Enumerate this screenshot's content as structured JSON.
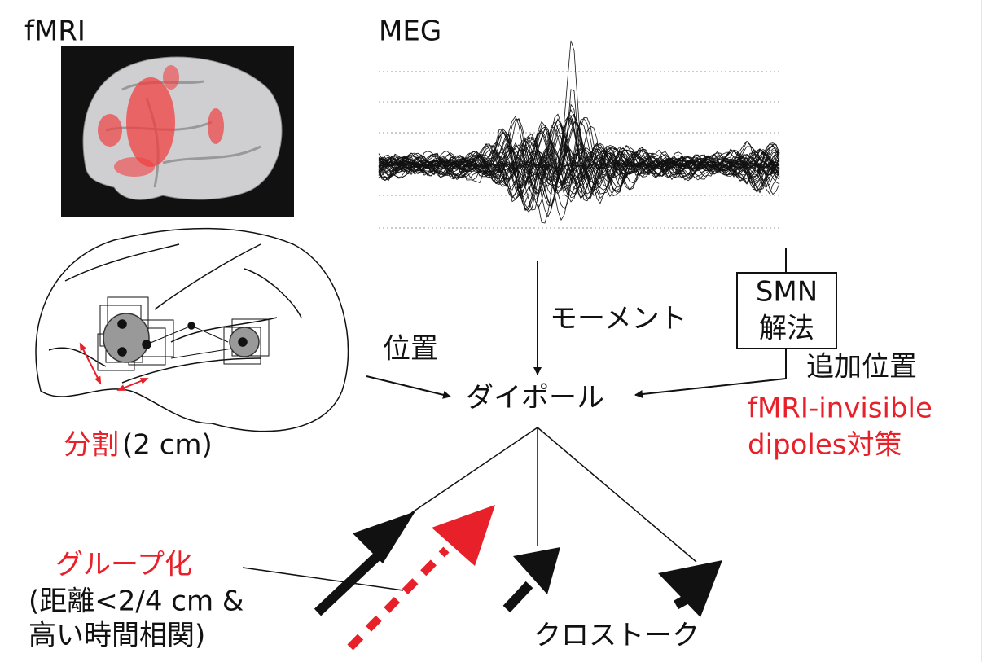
{
  "labels": {
    "fmri": "fMRI",
    "meg": "MEG",
    "moment": "モーメント",
    "smn": [
      "SMN",
      "解法"
    ],
    "position": "位置",
    "additional_position": "追加位置",
    "dipole": "ダイポール",
    "invisible": [
      "fMRI-invisible",
      "dipoles対策"
    ],
    "division": "分割",
    "division_size": "(2 cm)",
    "grouping": "グループ化",
    "grouping_criteria": [
      "(距離<2/4 cm &",
      "高い時間相関)"
    ],
    "crosstalk": "クロストーク"
  }
}
